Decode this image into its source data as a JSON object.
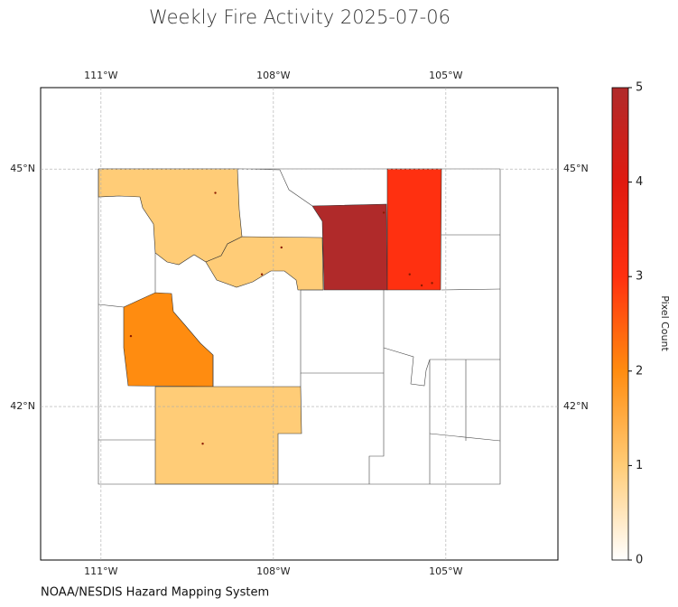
{
  "chart_data": {
    "type": "choropleth",
    "title": "Weekly Fire Activity 2025-07-06",
    "source": "NOAA/NESDIS Hazard Mapping System",
    "xlim": [
      -112.05,
      -103.05
    ],
    "ylim": [
      40.06,
      46.03
    ],
    "xticks": [
      {
        "value": -111,
        "label": "111°W"
      },
      {
        "value": -108,
        "label": "108°W"
      },
      {
        "value": -105,
        "label": "105°W"
      }
    ],
    "yticks": [
      {
        "value": 45,
        "label": "45°N"
      },
      {
        "value": 42,
        "label": "42°N"
      }
    ],
    "grid": true,
    "regions": {
      "values": [
        1,
        1,
        2,
        1,
        5,
        3
      ]
    },
    "fires": {
      "x": [
        -109.01,
        -107.86,
        -108.2,
        -110.48,
        -109.23,
        -106.08,
        -105.63,
        -105.42,
        -105.24
      ],
      "y": [
        44.7,
        44.01,
        43.67,
        42.89,
        41.53,
        44.45,
        43.67,
        43.53,
        43.56
      ]
    },
    "colorbar": {
      "label": "Pixel Count",
      "clim": [
        0,
        5
      ],
      "ticks": [
        0,
        1,
        2,
        3,
        4,
        5
      ],
      "colors": [
        "#ffffff",
        "#ffcc77",
        "#ff8c10",
        "#ff3010",
        "#e01a10",
        "#b02a2a"
      ]
    }
  }
}
